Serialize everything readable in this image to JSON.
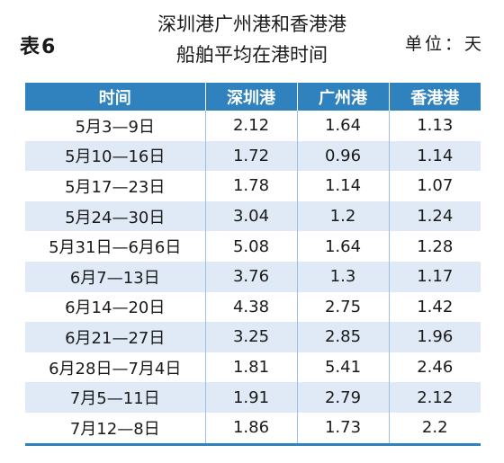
{
  "table_no": "表6",
  "title_line1": "深圳港广州港和香港港",
  "title_line2": "船舶平均在港时间",
  "unit": "单位：天",
  "headers": [
    "时间",
    "深圳港",
    "广州港",
    "香港港"
  ],
  "rows": [
    [
      "5月3—9日",
      "2.12",
      "1.64",
      "1.13"
    ],
    [
      "5月10—16日",
      "1.72",
      "0.96",
      "1.14"
    ],
    [
      "5月17—23日",
      "1.78",
      "1.14",
      "1.07"
    ],
    [
      "5月24—30日",
      "3.04",
      "1.2",
      "1.24"
    ],
    [
      "5月31日—6月6日",
      "5.08",
      "1.64",
      "1.28"
    ],
    [
      "6月7—13日",
      "3.76",
      "1.3",
      "1.17"
    ],
    [
      "6月14—20日",
      "4.38",
      "2.75",
      "1.42"
    ],
    [
      "6月21—27日",
      "3.25",
      "2.85",
      "1.96"
    ],
    [
      "6月28日—7月4日",
      "1.81",
      "5.41",
      "2.46"
    ],
    [
      "7月5—11日",
      "1.91",
      "2.79",
      "2.12"
    ],
    [
      "7月12—8日",
      "1.86",
      "1.73",
      "2.2"
    ]
  ]
}
